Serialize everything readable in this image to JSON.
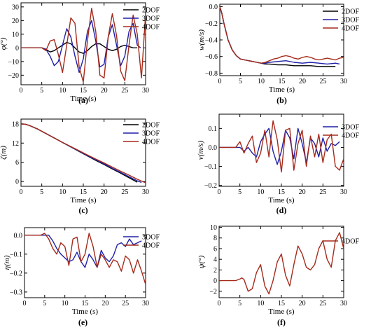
{
  "colors": {
    "2DOF": "#000000",
    "3DOF": "#1f1fa8",
    "4DOF": "#a52a1a"
  },
  "chart_data": [
    {
      "id": "a",
      "type": "line",
      "panel_label": "(a)",
      "xlabel": "Time (s)",
      "ylabel": "φ(°)",
      "xlim": [
        0,
        30
      ],
      "ylim": [
        -27,
        33
      ],
      "x_ticks": [
        0,
        5,
        10,
        15,
        20,
        25,
        30
      ],
      "y_ticks": [
        -20,
        -10,
        0,
        10,
        20,
        30
      ],
      "legend": "right",
      "series": [
        {
          "name": "2DOF",
          "x": [
            0,
            3,
            5,
            6,
            7,
            8,
            9,
            10,
            11,
            12,
            13,
            14,
            15,
            16,
            17,
            18,
            19,
            20,
            21,
            22,
            23,
            24,
            25,
            26,
            27,
            28
          ],
          "y": [
            0,
            0,
            0,
            -1,
            -3,
            -2,
            0,
            2,
            4,
            3,
            0,
            -3,
            -4,
            -2,
            1,
            3,
            3,
            1,
            -1,
            -2,
            -1,
            1,
            2,
            1,
            0,
            0
          ]
        },
        {
          "name": "3DOF",
          "x": [
            0,
            5,
            6,
            7,
            8,
            9,
            10,
            11,
            12,
            13,
            14,
            15,
            16,
            17,
            18,
            19,
            20,
            21,
            22,
            23,
            24,
            25,
            26,
            27,
            28,
            28.8
          ],
          "y": [
            0,
            0,
            -1,
            -6,
            -13,
            -10,
            2,
            14,
            8,
            -6,
            -18,
            -8,
            12,
            20,
            5,
            -14,
            -12,
            8,
            17,
            2,
            -13,
            -6,
            12,
            18,
            2,
            0
          ]
        },
        {
          "name": "4DOF",
          "x": [
            0,
            5,
            6,
            7,
            8,
            9,
            10,
            11,
            12,
            13,
            14,
            15,
            16,
            17,
            18,
            19,
            20,
            21,
            22,
            23,
            24,
            25,
            26,
            27,
            28,
            29,
            30
          ],
          "y": [
            0,
            0,
            -2,
            5,
            6,
            -5,
            -18,
            2,
            22,
            18,
            -14,
            -25,
            5,
            29,
            12,
            -20,
            -22,
            8,
            25,
            9,
            -17,
            -24,
            2,
            24,
            10,
            -22,
            25
          ]
        }
      ]
    },
    {
      "id": "b",
      "type": "line",
      "panel_label": "(b)",
      "xlabel": "Time (s)",
      "ylabel": "w(m/s)",
      "xlim": [
        0,
        30
      ],
      "ylim": [
        -0.83,
        0.03
      ],
      "x_ticks": [
        0,
        5,
        10,
        15,
        20,
        25,
        30
      ],
      "y_ticks": [
        -0.8,
        -0.6,
        -0.4,
        -0.2,
        0.0
      ],
      "legend": "top-right",
      "series": [
        {
          "name": "2DOF",
          "x": [
            0,
            0.5,
            1,
            2,
            3,
            4,
            5,
            6,
            7,
            8,
            9,
            10,
            11,
            12,
            14,
            16,
            18,
            20,
            22,
            24,
            26,
            28
          ],
          "y": [
            0,
            -0.08,
            -0.2,
            -0.4,
            -0.52,
            -0.59,
            -0.63,
            -0.64,
            -0.65,
            -0.66,
            -0.67,
            -0.68,
            -0.69,
            -0.69,
            -0.7,
            -0.7,
            -0.71,
            -0.71,
            -0.71,
            -0.72,
            -0.72,
            -0.72
          ]
        },
        {
          "name": "3DOF",
          "x": [
            0,
            0.5,
            1,
            2,
            3,
            4,
            5,
            6,
            7,
            8,
            9,
            10,
            11,
            12,
            14,
            16,
            18,
            20,
            22,
            24,
            26,
            28,
            29
          ],
          "y": [
            0,
            -0.08,
            -0.2,
            -0.4,
            -0.52,
            -0.59,
            -0.63,
            -0.64,
            -0.65,
            -0.66,
            -0.67,
            -0.68,
            -0.68,
            -0.67,
            -0.66,
            -0.65,
            -0.67,
            -0.68,
            -0.67,
            -0.68,
            -0.69,
            -0.68,
            -0.69
          ]
        },
        {
          "name": "4DOF",
          "x": [
            0,
            0.5,
            1,
            2,
            3,
            4,
            5,
            6,
            7,
            8,
            9,
            10,
            11,
            12,
            13,
            14,
            15,
            16,
            17,
            18,
            19,
            20,
            21,
            22,
            23,
            24,
            25,
            26,
            27,
            28,
            29,
            30
          ],
          "y": [
            0,
            -0.08,
            -0.2,
            -0.4,
            -0.52,
            -0.59,
            -0.63,
            -0.64,
            -0.65,
            -0.66,
            -0.67,
            -0.68,
            -0.67,
            -0.65,
            -0.63,
            -0.62,
            -0.6,
            -0.59,
            -0.6,
            -0.62,
            -0.63,
            -0.61,
            -0.6,
            -0.61,
            -0.63,
            -0.64,
            -0.63,
            -0.62,
            -0.63,
            -0.64,
            -0.62,
            -0.61
          ]
        }
      ]
    },
    {
      "id": "c",
      "type": "line",
      "panel_label": "(c)",
      "xlabel": "Time (s)",
      "ylabel": "ζ(m)",
      "xlim": [
        0,
        30
      ],
      "ylim": [
        -1.5,
        19.5
      ],
      "x_ticks": [
        0,
        5,
        10,
        15,
        20,
        25,
        30
      ],
      "y_ticks": [
        0,
        6,
        12,
        18
      ],
      "legend": "top-right",
      "series": [
        {
          "name": "2DOF",
          "x": [
            0,
            1,
            2,
            4,
            6,
            8,
            10,
            12,
            14,
            16,
            18,
            20,
            22,
            24,
            26,
            28
          ],
          "y": [
            18,
            17.9,
            17.5,
            16.4,
            15,
            13.6,
            12.2,
            10.8,
            9.4,
            8,
            6.6,
            5.3,
            3.9,
            2.6,
            1.2,
            -0.2
          ]
        },
        {
          "name": "3DOF",
          "x": [
            0,
            1,
            2,
            4,
            6,
            8,
            10,
            12,
            14,
            16,
            18,
            20,
            22,
            24,
            26,
            28,
            29
          ],
          "y": [
            18,
            17.9,
            17.5,
            16.4,
            15,
            13.6,
            12.2,
            10.8,
            9.5,
            8.1,
            6.8,
            5.5,
            4.1,
            2.8,
            1.5,
            0.2,
            -0.3
          ]
        },
        {
          "name": "4DOF",
          "x": [
            0,
            1,
            2,
            4,
            6,
            8,
            10,
            12,
            14,
            16,
            18,
            20,
            22,
            24,
            26,
            28,
            30
          ],
          "y": [
            18,
            17.9,
            17.5,
            16.4,
            15,
            13.6,
            12.2,
            10.9,
            9.6,
            8.3,
            7,
            5.8,
            4.5,
            3.2,
            2,
            0.7,
            -0.4
          ]
        }
      ]
    },
    {
      "id": "d",
      "type": "line",
      "panel_label": "(d)",
      "xlabel": "Time (s)",
      "ylabel": "v(m/s)",
      "xlim": [
        0,
        30
      ],
      "ylim": [
        -0.205,
        0.175
      ],
      "x_ticks": [
        0,
        5,
        10,
        15,
        20,
        25,
        30
      ],
      "y_ticks": [
        -0.2,
        -0.1,
        0.0,
        0.1
      ],
      "legend": "top-right",
      "series": [
        {
          "name": "3DOF",
          "x": [
            0,
            4,
            5,
            6,
            7,
            8,
            9,
            10,
            11,
            12,
            13,
            14,
            15,
            16,
            17,
            18,
            19,
            20,
            21,
            22,
            23,
            24,
            25,
            26,
            27,
            28,
            29
          ],
          "y": [
            0,
            0,
            0,
            -0.02,
            0,
            -0.03,
            -0.05,
            0.03,
            0.07,
            0.1,
            -0.02,
            -0.09,
            -0.02,
            0.09,
            0.05,
            -0.06,
            0.1,
            0.02,
            -0.08,
            0.05,
            0.02,
            -0.05,
            0.05,
            -0.02,
            0.02,
            0.01,
            0.03
          ]
        },
        {
          "name": "4DOF",
          "x": [
            0,
            4,
            5,
            6,
            7,
            8,
            9,
            10,
            11,
            12,
            12.5,
            13,
            14,
            15,
            16,
            17,
            18,
            19,
            20,
            21,
            22,
            23,
            24,
            25,
            26,
            27,
            28,
            29,
            30
          ],
          "y": [
            0,
            0,
            0.03,
            -0.03,
            0.02,
            0.06,
            -0.08,
            -0.03,
            0.09,
            -0.05,
            0.05,
            0.14,
            0.04,
            -0.13,
            0.09,
            0.1,
            -0.12,
            0.02,
            0.09,
            -0.1,
            0.06,
            -0.05,
            0.07,
            -0.08,
            0.04,
            0.07,
            -0.1,
            -0.12,
            -0.06
          ]
        }
      ]
    },
    {
      "id": "e",
      "type": "line",
      "panel_label": "(e)",
      "xlabel": "Time (s)",
      "ylabel": "η(m)",
      "xlim": [
        0,
        30
      ],
      "ylim": [
        -0.33,
        0.04
      ],
      "x_ticks": [
        0,
        5,
        10,
        15,
        20,
        25,
        30
      ],
      "y_ticks": [
        -0.3,
        -0.2,
        -0.1,
        0.0
      ],
      "legend": "top-right",
      "series": [
        {
          "name": "3DOF",
          "x": [
            0,
            4,
            5,
            6,
            7,
            8,
            9,
            10,
            11,
            12,
            13,
            14,
            15,
            16,
            17,
            18,
            19,
            20,
            21,
            22,
            23,
            24,
            25,
            26,
            27,
            28,
            29
          ],
          "y": [
            0,
            0,
            0,
            0,
            -0.03,
            -0.07,
            -0.1,
            -0.12,
            -0.14,
            -0.13,
            -0.09,
            -0.14,
            -0.17,
            -0.1,
            -0.13,
            -0.17,
            -0.08,
            -0.12,
            -0.14,
            -0.11,
            -0.05,
            -0.04,
            -0.06,
            -0.02,
            -0.05,
            -0.04,
            -0.03
          ]
        },
        {
          "name": "4DOF",
          "x": [
            0,
            4,
            5,
            6,
            7,
            8,
            9,
            10,
            11,
            12,
            13,
            14,
            15,
            16,
            17,
            18,
            19,
            20,
            21,
            22,
            23,
            24,
            25,
            26,
            27,
            28,
            29,
            30
          ],
          "y": [
            0,
            0,
            0.01,
            -0.02,
            -0.07,
            -0.1,
            -0.04,
            -0.06,
            -0.16,
            -0.02,
            -0.01,
            -0.14,
            -0.1,
            0.01,
            -0.06,
            -0.17,
            -0.1,
            -0.13,
            -0.17,
            -0.13,
            -0.14,
            -0.19,
            -0.11,
            -0.13,
            -0.2,
            -0.13,
            -0.19,
            -0.26
          ]
        }
      ]
    },
    {
      "id": "f",
      "type": "line",
      "panel_label": "(f)",
      "xlabel": "Time (s)",
      "ylabel": "ψ(°)",
      "xlim": [
        0,
        30
      ],
      "ylim": [
        -3.2,
        10.2
      ],
      "x_ticks": [
        0,
        5,
        10,
        15,
        20,
        25,
        30
      ],
      "y_ticks": [
        -2,
        0,
        2,
        4,
        6,
        8,
        10
      ],
      "legend": "top-right",
      "series": [
        {
          "name": "4DOF",
          "x": [
            0,
            4,
            5,
            5.5,
            6,
            7,
            8,
            9,
            10,
            11,
            12,
            13,
            14,
            15,
            16,
            17,
            18,
            19,
            20,
            21,
            22,
            23,
            24,
            25,
            26,
            27,
            28,
            29,
            30
          ],
          "y": [
            0,
            0,
            0.3,
            0.5,
            0.2,
            -2,
            -1.5,
            1.5,
            3,
            -1,
            -2.5,
            0,
            3.5,
            5,
            1,
            -1,
            3,
            6.5,
            5,
            2.5,
            2,
            3,
            6,
            7.5,
            4,
            2.5,
            7.5,
            9,
            6
          ]
        }
      ]
    }
  ]
}
